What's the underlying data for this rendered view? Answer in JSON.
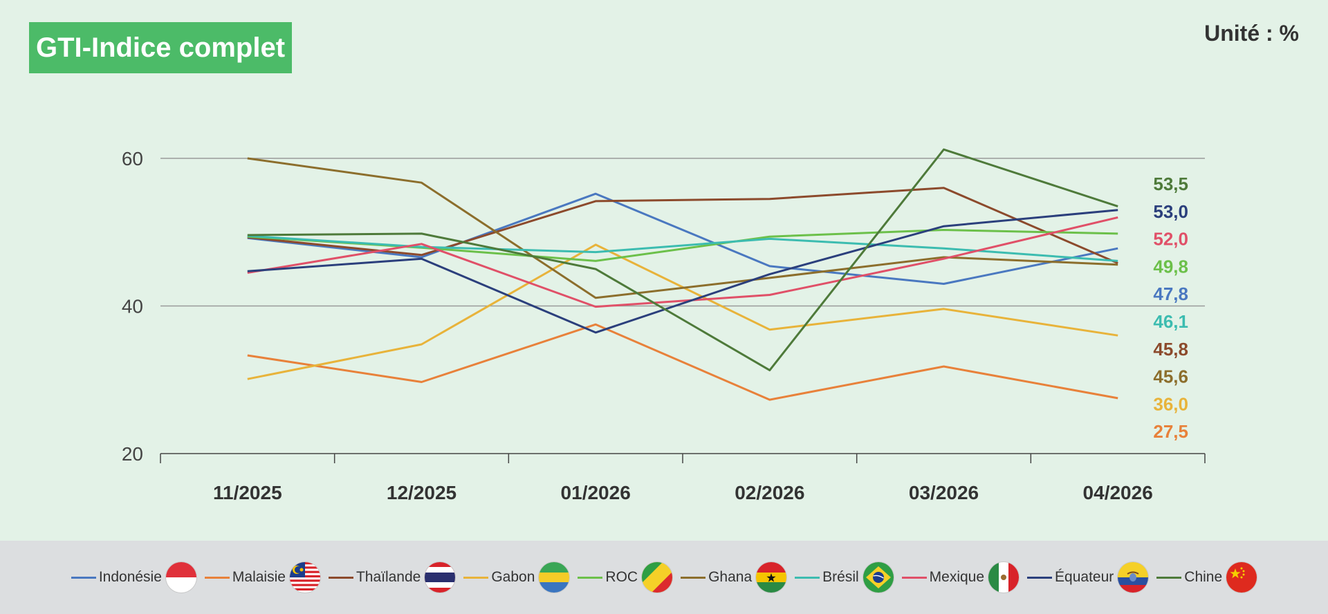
{
  "header": {
    "title": "GTI-Indice complet",
    "unit": "Unité : %"
  },
  "colors": {
    "background": "#e3f2e7",
    "title_bg": "#4cbb68",
    "legend_bg": "#dcdee0",
    "grid": "#9a9a9a"
  },
  "chart_data": {
    "type": "line",
    "title": "GTI-Indice complet",
    "xlabel": "",
    "ylabel": "",
    "x": [
      "11/2025",
      "12/2025",
      "01/2026",
      "02/2026",
      "03/2026",
      "04/2026"
    ],
    "ylim": [
      20,
      60
    ],
    "yticks": [
      20,
      40,
      60
    ],
    "grid": true,
    "legend": "bottom",
    "series": [
      {
        "name": "Indonésie",
        "color": "#4a78c0",
        "flag": "indonesia-flag",
        "values": [
          49.2,
          46.6,
          55.2,
          45.4,
          43.0,
          47.8
        ]
      },
      {
        "name": "Malaisie",
        "color": "#e8813a",
        "flag": "malaysia-flag",
        "values": [
          33.3,
          29.7,
          37.5,
          27.3,
          31.8,
          27.5
        ]
      },
      {
        "name": "Thaïlande",
        "color": "#8c4a2c",
        "flag": "thailand-flag",
        "values": [
          49.3,
          46.9,
          54.2,
          54.5,
          56.0,
          45.8
        ]
      },
      {
        "name": "Gabon",
        "color": "#e8b33a",
        "flag": "gabon-flag",
        "values": [
          30.1,
          34.8,
          48.3,
          36.8,
          39.6,
          36.0
        ]
      },
      {
        "name": "ROC",
        "color": "#6cc04a",
        "flag": "roc-flag",
        "values": [
          49.4,
          47.9,
          46.1,
          49.4,
          50.3,
          49.8
        ]
      },
      {
        "name": "Ghana",
        "color": "#8c6e2c",
        "flag": "ghana-flag",
        "values": [
          60.0,
          56.7,
          41.1,
          43.8,
          46.6,
          45.6
        ]
      },
      {
        "name": "Brésil",
        "color": "#3cbcb0",
        "flag": "brazil-flag",
        "values": [
          49.5,
          48.0,
          47.3,
          49.1,
          47.8,
          46.1
        ]
      },
      {
        "name": "Mexique",
        "color": "#e05068",
        "flag": "mexico-flag",
        "values": [
          44.5,
          48.4,
          39.9,
          41.5,
          46.4,
          52.0
        ]
      },
      {
        "name": "Équateur",
        "color": "#2b3f7c",
        "flag": "ecuador-flag",
        "values": [
          44.7,
          46.4,
          36.4,
          44.3,
          50.8,
          53.0
        ]
      },
      {
        "name": "Chine",
        "color": "#4e7a3a",
        "flag": "china-flag",
        "values": [
          49.6,
          49.8,
          45.0,
          31.3,
          61.2,
          53.5
        ]
      }
    ],
    "end_labels": [
      {
        "text": "53,5",
        "color": "#4e7a3a"
      },
      {
        "text": "53,0",
        "color": "#2b3f7c"
      },
      {
        "text": "52,0",
        "color": "#e05068"
      },
      {
        "text": "49,8",
        "color": "#6cc04a"
      },
      {
        "text": "47,8",
        "color": "#4a78c0"
      },
      {
        "text": "46,1",
        "color": "#3cbcb0"
      },
      {
        "text": "45,8",
        "color": "#8c4a2c"
      },
      {
        "text": "45,6",
        "color": "#8c6e2c"
      },
      {
        "text": "36,0",
        "color": "#e8b33a"
      },
      {
        "text": "27,5",
        "color": "#e8813a"
      }
    ]
  }
}
